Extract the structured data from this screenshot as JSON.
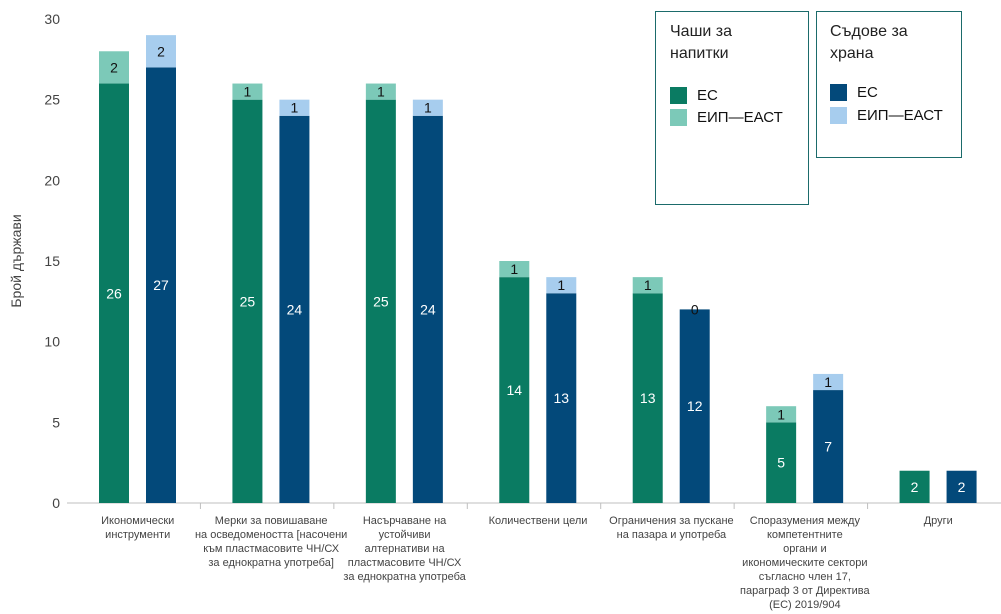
{
  "chart_data": {
    "type": "bar",
    "stacked": true,
    "ylabel": "Брой държави",
    "ylim": [
      0,
      30
    ],
    "yticks": [
      0,
      5,
      10,
      15,
      20,
      25,
      30
    ],
    "grid": false,
    "categories": [
      [
        "Икономически",
        "инструменти"
      ],
      [
        "Мерки за повишаване",
        "на осведомеността [насочени",
        "към пластмасовите ЧН/СХ",
        "за еднократна употреба]"
      ],
      [
        "Насърчаване на",
        "устойчиви",
        "алтернативи на",
        "пластмасовите ЧН/СХ",
        "за еднократна употреба"
      ],
      [
        "Количествени цели"
      ],
      [
        "Ограничения за пускане",
        "на пазара и употреба"
      ],
      [
        "Споразумения между",
        "компетентните",
        "органи и",
        "икономическите сектори",
        "съгласно член 17,",
        "параграф 3 от Директива",
        "(ЕС) 2019/904"
      ],
      [
        "Други"
      ]
    ],
    "groups": [
      {
        "name": "Чаши за напитки",
        "series": [
          {
            "name": "ЕС",
            "color": "#0a7b62",
            "values": [
              26,
              25,
              25,
              14,
              13,
              5,
              2
            ]
          },
          {
            "name": "ЕИП—ЕАСТ",
            "color": "#7cc9b8",
            "values": [
              2,
              1,
              1,
              1,
              1,
              1,
              null
            ]
          }
        ]
      },
      {
        "name": "Съдове за храна",
        "series": [
          {
            "name": "ЕС",
            "color": "#03497a",
            "values": [
              27,
              24,
              24,
              13,
              12,
              7,
              2
            ]
          },
          {
            "name": "ЕИП—ЕАСТ",
            "color": "#a7cdee",
            "values": [
              2,
              1,
              1,
              1,
              0,
              1,
              null
            ]
          }
        ]
      }
    ],
    "legend": [
      {
        "title": "Чаши за\nнапитки",
        "items": [
          {
            "label": "ЕС",
            "color": "#0a7b62"
          },
          {
            "label": "ЕИП—ЕАСТ",
            "color": "#7cc9b8"
          }
        ]
      },
      {
        "title": "Съдове за\nхрана",
        "items": [
          {
            "label": "ЕС",
            "color": "#03497a"
          },
          {
            "label": "ЕИП—ЕАСТ",
            "color": "#a7cdee"
          }
        ]
      }
    ]
  }
}
